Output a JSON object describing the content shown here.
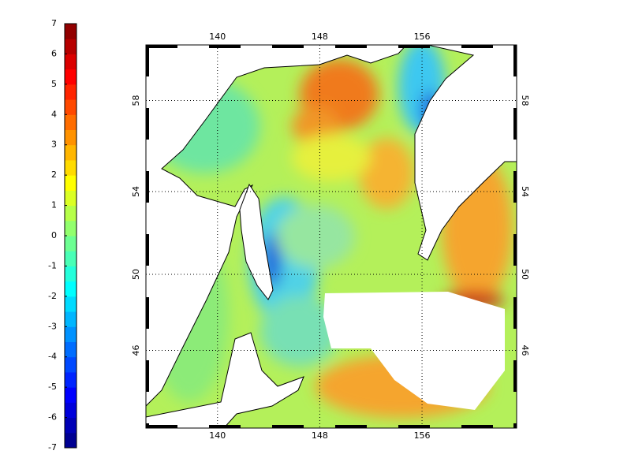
{
  "colorbar": {
    "range": [
      -7,
      7
    ],
    "ticks": [
      -7,
      -6,
      -5,
      -4,
      -3,
      -2,
      -1,
      0,
      1,
      2,
      3,
      4,
      5,
      6,
      7
    ]
  },
  "map": {
    "xlim": [
      134.4,
      163.4
    ],
    "ylim": [
      41.6,
      60.24
    ],
    "lon_ticks": [
      140,
      148,
      156
    ],
    "lat_ticks": [
      46,
      50,
      54,
      58
    ]
  }
}
